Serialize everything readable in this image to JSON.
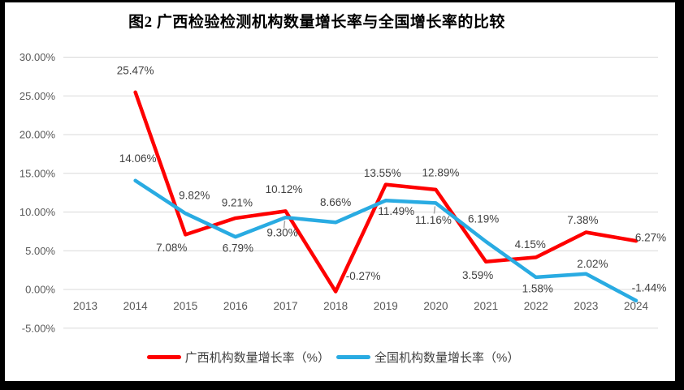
{
  "chart_data": {
    "type": "line",
    "title": "图2 广西检验检测机构数量增长率与全国增长率的比较",
    "categories": [
      "2013",
      "2014",
      "2015",
      "2016",
      "2017",
      "2018",
      "2019",
      "2020",
      "2021",
      "2022",
      "2023",
      "2024"
    ],
    "y_axis": {
      "min": -5,
      "max": 30,
      "step": 5,
      "tick_labels": [
        "30.00%",
        "25.00%",
        "20.00%",
        "15.00%",
        "10.00%",
        "5.00%",
        "0.00%",
        "-5.00%"
      ]
    },
    "grid": true,
    "legend_position": "bottom",
    "series": [
      {
        "name": "广西机构数量增长率（%）",
        "color": "#FE0000",
        "values": [
          null,
          25.47,
          7.08,
          9.21,
          10.12,
          -0.27,
          13.55,
          12.89,
          3.59,
          4.15,
          7.38,
          6.27
        ],
        "labels": [
          "",
          "25.47%",
          "7.08%",
          "9.21%",
          "10.12%",
          "-0.27%",
          "13.55%",
          "12.89%",
          "3.59%",
          "4.15%",
          "7.38%",
          "6.27%"
        ],
        "label_offsets": [
          [
            0,
            0
          ],
          [
            0,
            -27
          ],
          [
            -17,
            16
          ],
          [
            2,
            -19
          ],
          [
            -2,
            -27
          ],
          [
            34,
            -19
          ],
          [
            -4,
            -14
          ],
          [
            6,
            -21
          ],
          [
            -10,
            17
          ],
          [
            -7,
            -16
          ],
          [
            -4,
            -15
          ],
          [
            18,
            -4
          ]
        ],
        "label_leaders": []
      },
      {
        "name": "全国机构数量增长率（%）",
        "color": "#29ABE2",
        "values": [
          null,
          14.06,
          9.82,
          6.79,
          9.3,
          8.66,
          11.49,
          11.16,
          6.19,
          1.58,
          2.02,
          -1.44
        ],
        "labels": [
          "",
          "14.06%",
          "9.82%",
          "6.79%",
          "9.30%",
          "8.66%",
          "11.49%",
          "11.16%",
          "6.19%",
          "1.58%",
          "2.02%",
          "-1.44%"
        ],
        "label_offsets": [
          [
            0,
            0
          ],
          [
            3,
            -27
          ],
          [
            11,
            -22
          ],
          [
            3,
            14
          ],
          [
            -4,
            19
          ],
          [
            0,
            -25
          ],
          [
            13,
            13
          ],
          [
            -3,
            21
          ],
          [
            -3,
            -28
          ],
          [
            2,
            14
          ],
          [
            8,
            -12
          ],
          [
            16,
            -16
          ]
        ],
        "label_leaders": [
          4,
          7
        ]
      }
    ]
  },
  "colors": {
    "grid": "#D9D9D9",
    "axis_text": "#595959",
    "label_text": "#404040",
    "leader": "#A6A6A6",
    "background": "#FFFFFF",
    "frame": "#000000"
  }
}
